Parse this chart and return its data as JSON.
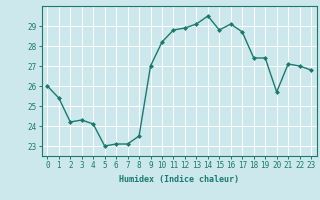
{
  "xlabel": "Humidex (Indice chaleur)",
  "x": [
    0,
    1,
    2,
    3,
    4,
    5,
    6,
    7,
    8,
    9,
    10,
    11,
    12,
    13,
    14,
    15,
    16,
    17,
    18,
    19,
    20,
    21,
    22,
    23
  ],
  "y": [
    26.0,
    25.4,
    24.2,
    24.3,
    24.1,
    23.0,
    23.1,
    23.1,
    23.5,
    27.0,
    28.2,
    28.8,
    28.9,
    29.1,
    29.5,
    28.8,
    29.1,
    28.7,
    27.4,
    27.4,
    25.7,
    27.1,
    27.0,
    26.8
  ],
  "line_color": "#1a7a6e",
  "marker": "D",
  "marker_size": 2.0,
  "bg_color": "#cce8ec",
  "grid_color": "#ffffff",
  "tick_color": "#1a7a6e",
  "label_color": "#1a7a6e",
  "ylim": [
    22.5,
    30.0
  ],
  "xlim": [
    -0.5,
    23.5
  ],
  "yticks": [
    23,
    24,
    25,
    26,
    27,
    28,
    29
  ],
  "xticks": [
    0,
    1,
    2,
    3,
    4,
    5,
    6,
    7,
    8,
    9,
    10,
    11,
    12,
    13,
    14,
    15,
    16,
    17,
    18,
    19,
    20,
    21,
    22,
    23
  ],
  "xlabel_fontsize": 6.0,
  "tick_fontsize": 5.5,
  "linewidth": 1.0
}
